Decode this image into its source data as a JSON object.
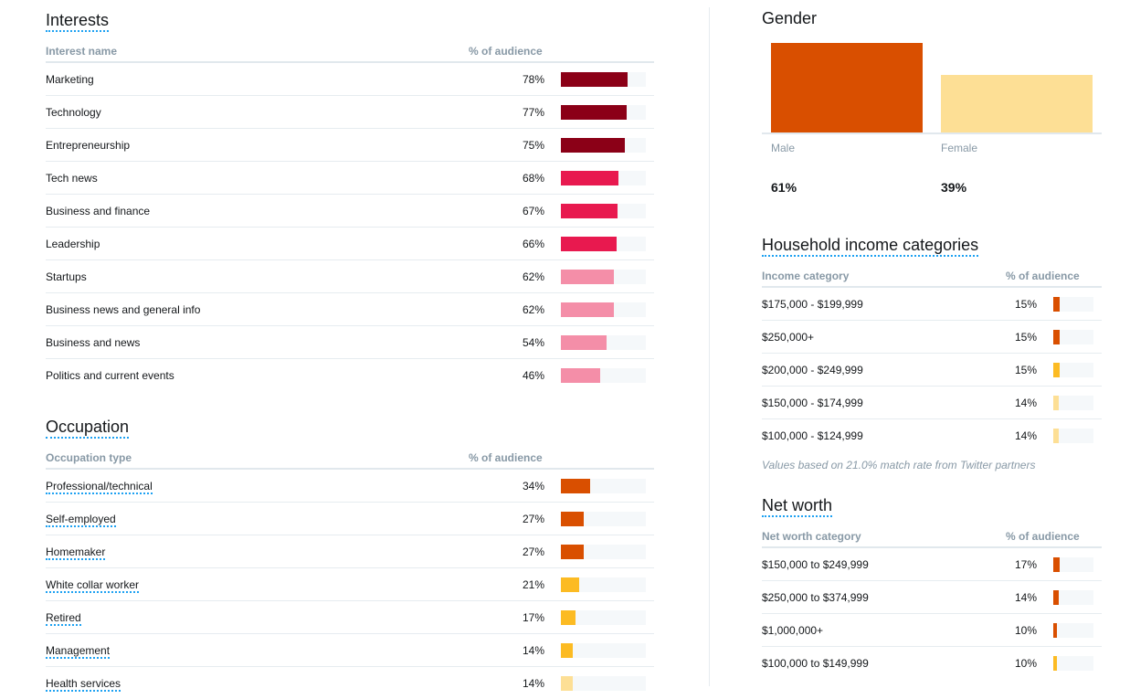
{
  "colors": {
    "dark_red": "#8b0017",
    "pink_red": "#e8194f",
    "light_pink": "#f48ea8",
    "dark_orange": "#d94f00",
    "gold": "#fcbb23",
    "light_gold": "#fddf95",
    "track": "#f5f8fa",
    "link_dots": "#1da1f2"
  },
  "interests": {
    "title": "Interests",
    "col_name": "Interest name",
    "col_pct": "% of audience",
    "rows": [
      {
        "name": "Marketing",
        "pct": "78%",
        "value": 78,
        "color": "#8b0017"
      },
      {
        "name": "Technology",
        "pct": "77%",
        "value": 77,
        "color": "#8b0017"
      },
      {
        "name": "Entrepreneurship",
        "pct": "75%",
        "value": 75,
        "color": "#8b0017"
      },
      {
        "name": "Tech news",
        "pct": "68%",
        "value": 68,
        "color": "#e8194f"
      },
      {
        "name": "Business and finance",
        "pct": "67%",
        "value": 67,
        "color": "#e8194f"
      },
      {
        "name": "Leadership",
        "pct": "66%",
        "value": 66,
        "color": "#e8194f"
      },
      {
        "name": "Startups",
        "pct": "62%",
        "value": 62,
        "color": "#f48ea8"
      },
      {
        "name": "Business news and general info",
        "pct": "62%",
        "value": 62,
        "color": "#f48ea8"
      },
      {
        "name": "Business and news",
        "pct": "54%",
        "value": 54,
        "color": "#f48ea8"
      },
      {
        "name": "Politics and current events",
        "pct": "46%",
        "value": 46,
        "color": "#f48ea8"
      }
    ]
  },
  "occupation": {
    "title": "Occupation",
    "col_name": "Occupation type",
    "col_pct": "% of audience",
    "rows": [
      {
        "name": "Professional/technical",
        "pct": "34%",
        "value": 34,
        "color": "#d94f00"
      },
      {
        "name": "Self-employed",
        "pct": "27%",
        "value": 27,
        "color": "#d94f00"
      },
      {
        "name": "Homemaker",
        "pct": "27%",
        "value": 27,
        "color": "#d94f00"
      },
      {
        "name": "White collar worker",
        "pct": "21%",
        "value": 21,
        "color": "#fcbb23"
      },
      {
        "name": "Retired",
        "pct": "17%",
        "value": 17,
        "color": "#fcbb23"
      },
      {
        "name": "Management",
        "pct": "14%",
        "value": 14,
        "color": "#fcbb23"
      },
      {
        "name": "Health services",
        "pct": "14%",
        "value": 14,
        "color": "#fddf95"
      }
    ]
  },
  "gender": {
    "title": "Gender",
    "items": [
      {
        "label": "Male",
        "pct": "61%",
        "value": 61,
        "color": "#d94f00"
      },
      {
        "label": "Female",
        "pct": "39%",
        "value": 39,
        "color": "#fddf95"
      }
    ]
  },
  "income": {
    "title": "Household income categories",
    "col_name": "Income category",
    "col_pct": "% of audience",
    "rows": [
      {
        "name": "$175,000 - $199,999",
        "pct": "15%",
        "value": 15,
        "color": "#d94f00"
      },
      {
        "name": "$250,000+",
        "pct": "15%",
        "value": 15,
        "color": "#d94f00"
      },
      {
        "name": "$200,000 - $249,999",
        "pct": "15%",
        "value": 15,
        "color": "#fcbb23"
      },
      {
        "name": "$150,000 - $174,999",
        "pct": "14%",
        "value": 14,
        "color": "#fddf95"
      },
      {
        "name": "$100,000 - $124,999",
        "pct": "14%",
        "value": 14,
        "color": "#fddf95"
      }
    ],
    "note": "Values based on 21.0% match rate from Twitter partners"
  },
  "networth": {
    "title": "Net worth",
    "col_name": "Net worth category",
    "col_pct": "% of audience",
    "rows": [
      {
        "name": "$150,000 to $249,999",
        "pct": "17%",
        "value": 17,
        "color": "#d94f00"
      },
      {
        "name": "$250,000 to $374,999",
        "pct": "14%",
        "value": 14,
        "color": "#d94f00"
      },
      {
        "name": "$1,000,000+",
        "pct": "10%",
        "value": 10,
        "color": "#d94f00"
      },
      {
        "name": "$100,000 to $149,999",
        "pct": "10%",
        "value": 10,
        "color": "#fcbb23"
      }
    ]
  }
}
